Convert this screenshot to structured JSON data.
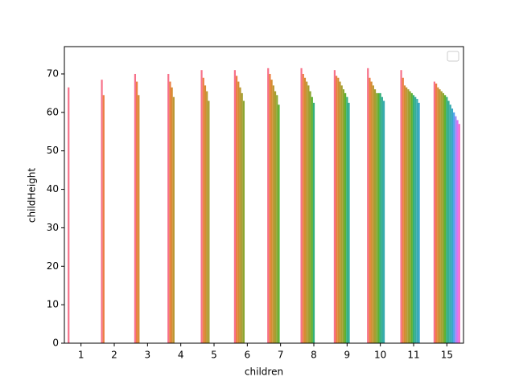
{
  "chart_data": {
    "type": "bar",
    "x_label": "children",
    "y_label": "childHeight",
    "categories": [
      "1",
      "2",
      "3",
      "4",
      "5",
      "6",
      "7",
      "8",
      "9",
      "10",
      "11",
      "15"
    ],
    "ylim": [
      0,
      77.1
    ],
    "yticks": [
      0,
      10,
      20,
      30,
      40,
      50,
      60,
      70
    ],
    "series": [
      {
        "color": "#f77189",
        "values": [
          66.5,
          68.5,
          70,
          70,
          71,
          71,
          71.5,
          71.5,
          71,
          71.5,
          71,
          68
        ]
      },
      {
        "color": "#ec7f42",
        "values": [
          null,
          64.5,
          68,
          68,
          69,
          69.5,
          70,
          70,
          69.5,
          69,
          69,
          67.5
        ]
      },
      {
        "color": "#d48c32",
        "values": [
          null,
          null,
          64.5,
          66.5,
          67,
          68,
          68.5,
          69,
          69,
          68,
          67,
          66.5
        ]
      },
      {
        "color": "#bb9832",
        "values": [
          null,
          null,
          null,
          64,
          65.5,
          66.5,
          67,
          68,
          68,
          67,
          66.5,
          66
        ]
      },
      {
        "color": "#a59e31",
        "values": [
          null,
          null,
          null,
          null,
          63,
          65,
          65.5,
          67,
          67,
          66,
          66,
          65.5
        ]
      },
      {
        "color": "#8ba731",
        "values": [
          null,
          null,
          null,
          null,
          null,
          63,
          64.5,
          65.5,
          66,
          65,
          65.5,
          65
        ]
      },
      {
        "color": "#5bb031",
        "values": [
          null,
          null,
          null,
          null,
          null,
          null,
          62,
          64,
          65,
          65,
          65,
          64.5
        ]
      },
      {
        "color": "#33b07a",
        "values": [
          null,
          null,
          null,
          null,
          null,
          null,
          null,
          62.5,
          64,
          65,
          64.5,
          64
        ]
      },
      {
        "color": "#35ad98",
        "values": [
          null,
          null,
          null,
          null,
          null,
          null,
          null,
          null,
          62.5,
          64,
          64,
          63
        ]
      },
      {
        "color": "#37abaf",
        "values": [
          null,
          null,
          null,
          null,
          null,
          null,
          null,
          null,
          null,
          63,
          63.5,
          62
        ]
      },
      {
        "color": "#3aa8c6",
        "values": [
          null,
          null,
          null,
          null,
          null,
          null,
          null,
          null,
          null,
          null,
          62.5,
          61
        ]
      },
      {
        "color": "#4ea0ec",
        "values": [
          null,
          null,
          null,
          null,
          null,
          null,
          null,
          null,
          null,
          null,
          null,
          60
        ]
      },
      {
        "color": "#9f8cf4",
        "values": [
          null,
          null,
          null,
          null,
          null,
          null,
          null,
          null,
          null,
          null,
          null,
          59
        ]
      },
      {
        "color": "#d873f4",
        "values": [
          null,
          null,
          null,
          null,
          null,
          null,
          null,
          null,
          null,
          null,
          null,
          58
        ]
      },
      {
        "color": "#f56bc6",
        "values": [
          null,
          null,
          null,
          null,
          null,
          null,
          null,
          null,
          null,
          null,
          null,
          57
        ]
      }
    ]
  }
}
